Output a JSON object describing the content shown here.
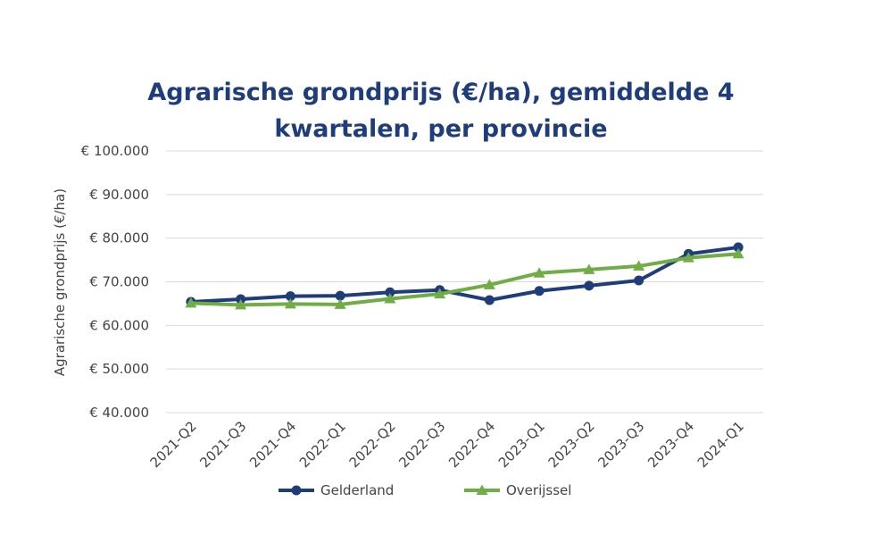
{
  "chart_data": {
    "type": "line",
    "title_lines": [
      "Agrarische grondprijs (€/ha), gemiddelde 4",
      "kwartalen, per provincie"
    ],
    "xlabel": "",
    "ylabel": "Agrarische grondprijs (€/ha)",
    "ylim": [
      40000,
      100000
    ],
    "yticks": [
      40000,
      50000,
      60000,
      70000,
      80000,
      90000,
      100000
    ],
    "ytick_labels": [
      "€ 40.000",
      "€ 50.000",
      "€ 60.000",
      "€ 70.000",
      "€ 80.000",
      "€ 90.000",
      "€ 100.000"
    ],
    "categories": [
      "2021-Q2",
      "2021-Q3",
      "2021-Q4",
      "2022-Q1",
      "2022-Q2",
      "2022-Q3",
      "2022-Q4",
      "2023-Q1",
      "2023-Q2",
      "2023-Q3",
      "2023-Q4",
      "2024-Q1"
    ],
    "grid": true,
    "legend_position": "bottom",
    "series": [
      {
        "name": "Gelderland",
        "color": "#1f3d7a",
        "marker": "circle",
        "values": [
          65400,
          66000,
          66700,
          66800,
          67600,
          68100,
          65800,
          67900,
          69100,
          70300,
          76400,
          77900
        ]
      },
      {
        "name": "Overijssel",
        "color": "#70ad47",
        "marker": "triangle",
        "values": [
          65100,
          64700,
          64900,
          64800,
          66100,
          67200,
          69300,
          72000,
          72800,
          73600,
          75500,
          76400
        ]
      }
    ],
    "colors": {
      "title": "#1f3d7a",
      "grid": "#d9d9d9",
      "text": "#444444"
    }
  }
}
